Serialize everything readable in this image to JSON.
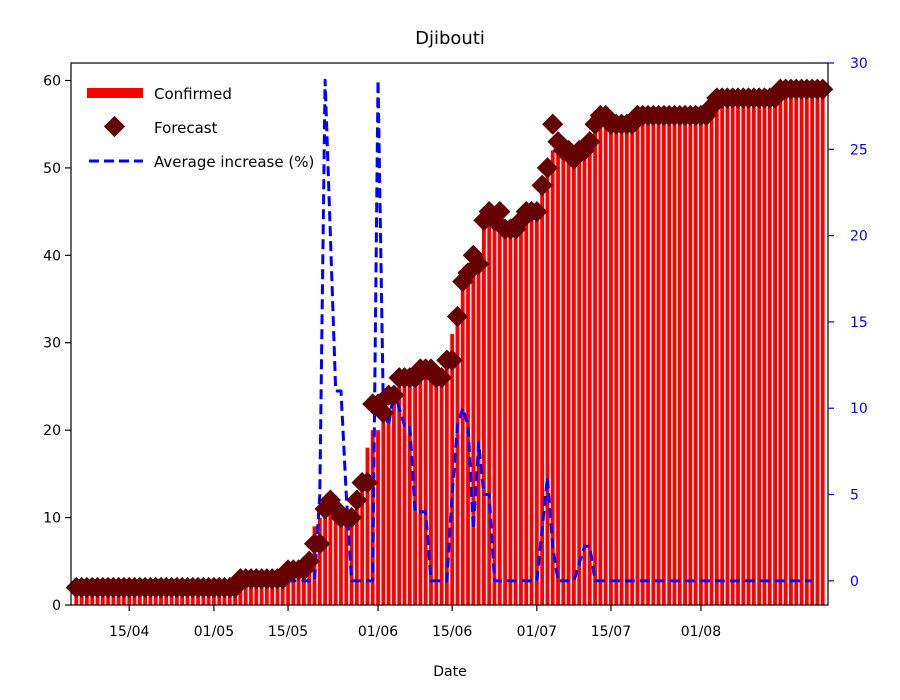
{
  "chart_data": {
    "type": "bar",
    "title": "Djibouti",
    "xlabel": "Date",
    "ylabel": "",
    "ylabel_right": "",
    "ylim": [
      0,
      62
    ],
    "ylim_right": [
      -1.4,
      30
    ],
    "xlim": [
      "2020-04-04",
      "2020-08-25"
    ],
    "x_ticks": [
      {
        "date": "2020-04-15",
        "label": "15/04"
      },
      {
        "date": "2020-05-01",
        "label": "01/05"
      },
      {
        "date": "2020-05-15",
        "label": "15/05"
      },
      {
        "date": "2020-06-01",
        "label": "01/06"
      },
      {
        "date": "2020-06-15",
        "label": "15/06"
      },
      {
        "date": "2020-07-01",
        "label": "01/07"
      },
      {
        "date": "2020-07-15",
        "label": "15/07"
      },
      {
        "date": "2020-08-01",
        "label": "01/08"
      }
    ],
    "y_ticks": [
      0,
      10,
      20,
      30,
      40,
      50,
      60
    ],
    "y_ticks_right": [
      0,
      5,
      10,
      15,
      20,
      25,
      30
    ],
    "legend_position": "top-left",
    "grid": false,
    "colors": {
      "confirmed": "#ff0000",
      "forecast": "#660000",
      "average": "#0000ff"
    },
    "x_start_date": "2020-04-05",
    "series": [
      {
        "name": "Confirmed",
        "kind": "bar",
        "axis": "left",
        "values": [
          2,
          2,
          2,
          2,
          2,
          2,
          2,
          2,
          2,
          2,
          2,
          2,
          2,
          2,
          2,
          2,
          2,
          2,
          2,
          2,
          2,
          2,
          2,
          2,
          2,
          2,
          2,
          2,
          2,
          2,
          2,
          3,
          3,
          3,
          3,
          3,
          3,
          3,
          3,
          3,
          4,
          4,
          4,
          4,
          5,
          9,
          10,
          11,
          11,
          11,
          10,
          10,
          11,
          12,
          14,
          18,
          20,
          20,
          22,
          22,
          24,
          25,
          25,
          26,
          26,
          26,
          27,
          27,
          26,
          26,
          28,
          31,
          33,
          37,
          38,
          40,
          39,
          43,
          44,
          45,
          45,
          43,
          43,
          43,
          44,
          45,
          45,
          45,
          48,
          50,
          52,
          52,
          51,
          52,
          51,
          51,
          52,
          53,
          55,
          56,
          56,
          55,
          55,
          55,
          55,
          55,
          56,
          56,
          56,
          56,
          56,
          56,
          56,
          56,
          56,
          56,
          56,
          56,
          56,
          56,
          57,
          58,
          58,
          58,
          58,
          58,
          58,
          58,
          58,
          58,
          58,
          58,
          58,
          59,
          59,
          59,
          59,
          59,
          59,
          59,
          59,
          59
        ]
      },
      {
        "name": "Forecast",
        "kind": "marker",
        "axis": "left",
        "values": [
          2,
          2,
          2,
          2,
          2,
          2,
          2,
          2,
          2,
          2,
          2,
          2,
          2,
          2,
          2,
          2,
          2,
          2,
          2,
          2,
          2,
          2,
          2,
          2,
          2,
          2,
          2,
          2,
          2,
          2,
          2,
          3,
          3,
          3,
          3,
          3,
          3,
          3,
          3,
          3,
          4,
          4,
          4,
          4,
          5,
          7,
          7,
          11,
          12,
          11,
          10,
          10,
          10,
          12,
          14,
          14,
          23,
          23,
          22,
          24,
          24,
          26,
          26,
          26,
          26,
          27,
          27,
          27,
          26,
          26,
          28,
          28,
          33,
          37,
          38,
          40,
          39,
          44,
          45,
          44,
          45,
          43,
          43,
          43,
          44,
          45,
          45,
          45,
          48,
          50,
          55,
          53,
          52,
          52,
          51,
          52,
          52,
          53,
          55,
          56,
          56,
          55,
          55,
          55,
          55,
          55,
          56,
          56,
          56,
          56,
          56,
          56,
          56,
          56,
          56,
          56,
          56,
          56,
          56,
          56,
          57,
          58,
          58,
          58,
          58,
          58,
          58,
          58,
          58,
          58,
          58,
          58,
          58,
          59,
          59,
          59,
          59,
          59,
          59,
          59,
          59,
          59
        ]
      },
      {
        "name": "Average increase (%)",
        "kind": "line",
        "axis": "right",
        "values": [
          0,
          0,
          0,
          0,
          0,
          0,
          0,
          0,
          0,
          0,
          0,
          0,
          0,
          0,
          0,
          0,
          0,
          0,
          0,
          0,
          0,
          0,
          0,
          0,
          0,
          0,
          0,
          0,
          0,
          0,
          0,
          0,
          0,
          0,
          0,
          0,
          0,
          0,
          0,
          0,
          0,
          0,
          0,
          0,
          0,
          0,
          5,
          29,
          20,
          11,
          11,
          5,
          0,
          0,
          0,
          0,
          0,
          29,
          10,
          9,
          11,
          10,
          9,
          9,
          4,
          4,
          4,
          0,
          0,
          0,
          0,
          5,
          9,
          10,
          9,
          3,
          8,
          5,
          5,
          0,
          0,
          0,
          0,
          0,
          0,
          0,
          0,
          0,
          3,
          6,
          2,
          0,
          0,
          0,
          0,
          1,
          2,
          2,
          0,
          0,
          0,
          0,
          0,
          0,
          0,
          0,
          0,
          0,
          0,
          0,
          0,
          0,
          0,
          0,
          0,
          0,
          0,
          0,
          0,
          0,
          0,
          0,
          0,
          0,
          0,
          0,
          0,
          0,
          0,
          0,
          0,
          0,
          0,
          0,
          0,
          0,
          0,
          0,
          0,
          0
        ]
      }
    ]
  }
}
